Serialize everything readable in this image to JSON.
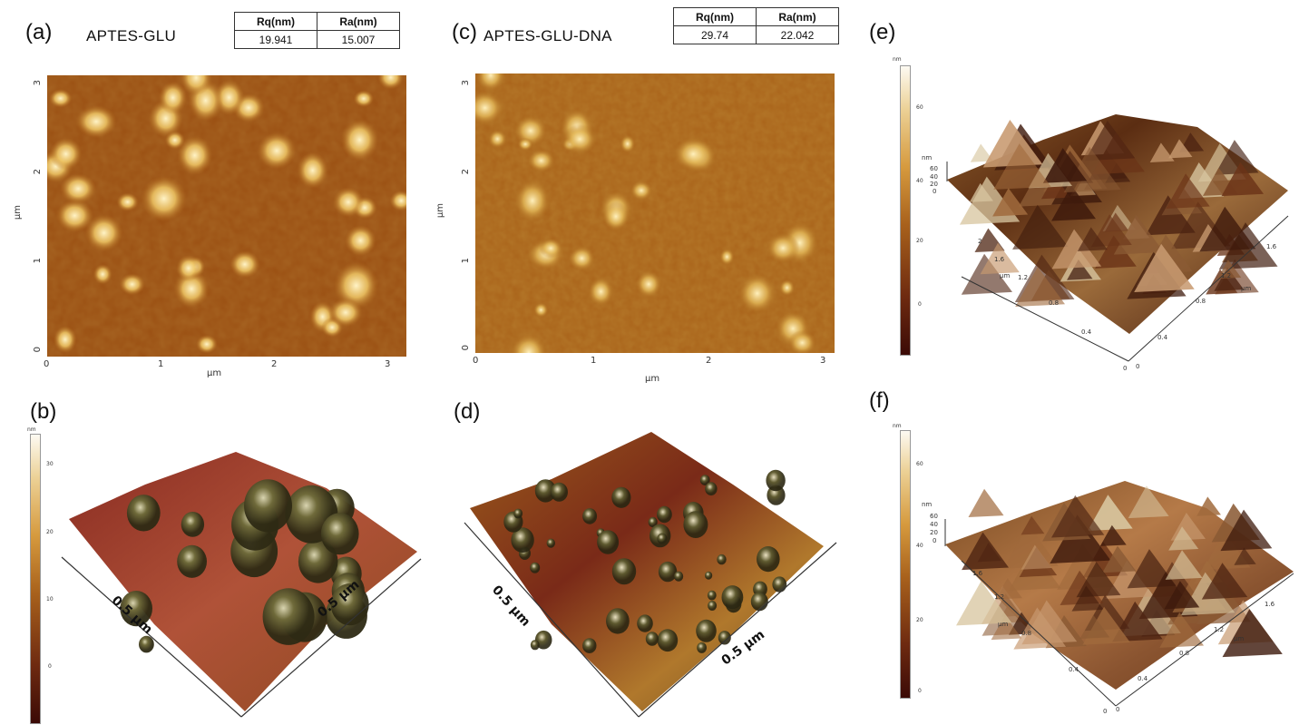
{
  "panel_a": {
    "label": "(a)",
    "title": "APTES-GLU",
    "table": {
      "headers": [
        "Rq(nm)",
        "Ra(nm)"
      ],
      "values": [
        "19.941",
        "15.007"
      ]
    },
    "x_ticks": [
      "0",
      "1",
      "2",
      "3"
    ],
    "y_ticks": [
      "0",
      "1",
      "2",
      "3"
    ],
    "x_unit": "µm",
    "y_unit": "µm"
  },
  "panel_b": {
    "label": "(b)",
    "scale_unit": "nm",
    "scale_ticks": [
      "30",
      "20",
      "10",
      "0"
    ],
    "dim_left": "0.5 µm",
    "dim_right": "0.5 µm"
  },
  "panel_c": {
    "label": "(c)",
    "title": "APTES-GLU-DNA",
    "table": {
      "headers": [
        "Rq(nm)",
        "Ra(nm)"
      ],
      "values": [
        "29.74",
        "22.042"
      ]
    },
    "x_ticks": [
      "0",
      "1",
      "2",
      "3"
    ],
    "y_ticks": [
      "0",
      "1",
      "2",
      "3"
    ],
    "x_unit": "µm",
    "y_unit": "µm"
  },
  "panel_d": {
    "label": "(d)",
    "dim_left": "0.5 µm",
    "dim_right": "0.5 µm"
  },
  "panel_e": {
    "label": "(e)",
    "scale_unit": "nm",
    "scale_ticks": [
      "60",
      "40",
      "20",
      "0"
    ],
    "z_unit": "nm",
    "z_ticks": [
      "60",
      "40",
      "20",
      "0"
    ],
    "axis_left_ticks": [
      "2",
      "1.6",
      "1.2",
      "0.8",
      "0.4"
    ],
    "axis_right_ticks": [
      "0.4",
      "0.8",
      "1.2",
      "1.6"
    ],
    "axis_unit": "µm",
    "origin": [
      "0",
      "0"
    ]
  },
  "panel_f": {
    "label": "(f)",
    "scale_unit": "nm",
    "scale_ticks": [
      "60",
      "40",
      "20",
      "0"
    ],
    "z_unit": "nm",
    "z_ticks": [
      "60",
      "40",
      "20",
      "0"
    ],
    "axis_left_ticks": [
      "1.6",
      "1.2",
      "0.8",
      "0.4"
    ],
    "axis_right_ticks": [
      "0.4",
      "0.8",
      "1.2",
      "1.6"
    ],
    "axis_unit": "µm",
    "origin": [
      "0",
      "0"
    ]
  },
  "colors": {
    "afm_dark": "#5a2408",
    "afm_mid": "#a35f1a",
    "afm_light": "#f2d68a"
  }
}
